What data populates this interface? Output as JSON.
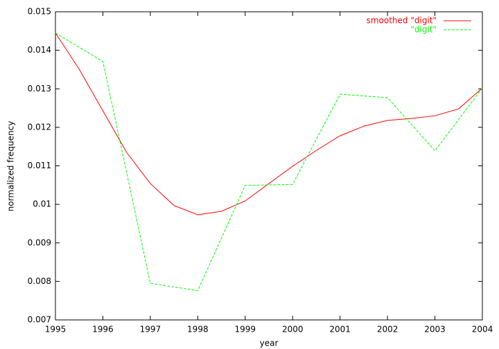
{
  "chart_data": {
    "type": "line",
    "xlabel": "year",
    "ylabel": "normalized frequency",
    "xlim": [
      1995,
      2004
    ],
    "xticks": [
      1995,
      1996,
      1997,
      1998,
      1999,
      2000,
      2001,
      2002,
      2003,
      2004
    ],
    "ylim": [
      0.007,
      0.015
    ],
    "yticks": [
      0.007,
      0.008,
      0.009,
      0.01,
      0.011,
      0.012,
      0.013,
      0.014,
      0.015
    ],
    "legend": "top-right",
    "series": [
      {
        "name": "smoothed \"digit\"",
        "color": "#ff0000",
        "dash": "solid",
        "x": [
          1995,
          1995.5,
          1996,
          1996.5,
          1997,
          1997.5,
          1998,
          1998.5,
          1999,
          1999.5,
          2000,
          2000.5,
          2001,
          2001.5,
          2002,
          2002.5,
          2003,
          2003.5,
          2004
        ],
        "values": [
          0.01445,
          0.01351,
          0.01243,
          0.01135,
          0.01054,
          0.00997,
          0.00973,
          0.00982,
          0.01009,
          0.01054,
          0.01099,
          0.0114,
          0.01178,
          0.01203,
          0.01218,
          0.01223,
          0.0123,
          0.01248,
          0.01302
        ]
      },
      {
        "name": "\"digit\"",
        "color": "#00ff00",
        "dash": "dashed",
        "x": [
          1995,
          1996,
          1997,
          1998,
          1999,
          2000,
          2001,
          2002,
          2003,
          2004
        ],
        "values": [
          0.01445,
          0.01371,
          0.00795,
          0.00776,
          0.01049,
          0.01052,
          0.01286,
          0.01277,
          0.01139,
          0.01302
        ]
      }
    ]
  }
}
